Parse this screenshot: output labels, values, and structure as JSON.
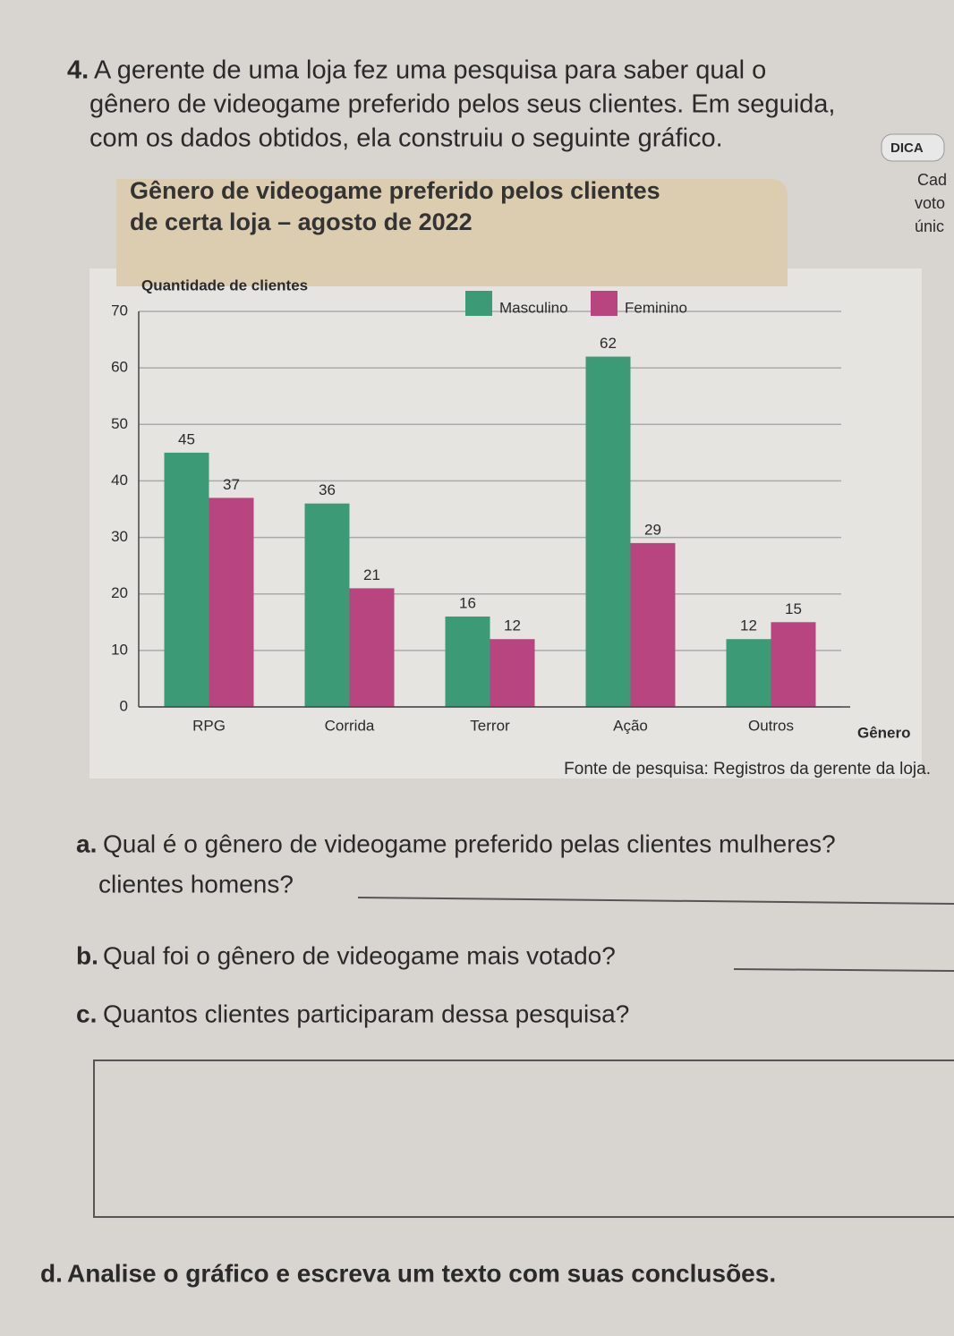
{
  "question": {
    "number": "4.",
    "intro": [
      "A gerente de uma loja fez uma pesquisa para saber qual o",
      "gênero de videogame preferido pelos seus clientes. Em seguida,",
      "com os dados obtidos, ela construiu o seguinte gráfico."
    ]
  },
  "sidebar": {
    "label": "DICA",
    "fragments": [
      "Cad",
      "voto",
      "únic"
    ]
  },
  "chart_data": {
    "type": "bar",
    "title": [
      "Gênero de videogame preferido pelos clientes",
      "de certa loja – agosto de 2022"
    ],
    "y_label": "Quantidade de clientes",
    "x_label": "Gênero",
    "categories": [
      "RPG",
      "Corrida",
      "Terror",
      "Ação",
      "Outros"
    ],
    "series": [
      {
        "name": "Masculino",
        "color": "#3d9a76",
        "values": [
          45,
          36,
          16,
          62,
          12
        ]
      },
      {
        "name": "Feminino",
        "color": "#b8457f",
        "values": [
          37,
          21,
          12,
          29,
          15
        ]
      }
    ],
    "ylim": [
      0,
      70
    ],
    "yticks": [
      0,
      10,
      20,
      30,
      40,
      50,
      60,
      70
    ],
    "legend": "top-right",
    "source": "Fonte de pesquisa: Registros da gerente da loja."
  },
  "questions": [
    {
      "letter": "a.",
      "lines": [
        "Qual é o gênero de videogame preferido pelas clientes mulheres?",
        "clientes homens?"
      ]
    },
    {
      "letter": "b.",
      "lines": [
        "Qual foi o gênero de videogame mais votado?"
      ]
    },
    {
      "letter": "c.",
      "lines": [
        "Quantos clientes participaram dessa pesquisa?"
      ]
    },
    {
      "letter": "d.",
      "lines": [
        "Analise o gráfico e escreva um texto com suas conclusões."
      ]
    }
  ]
}
